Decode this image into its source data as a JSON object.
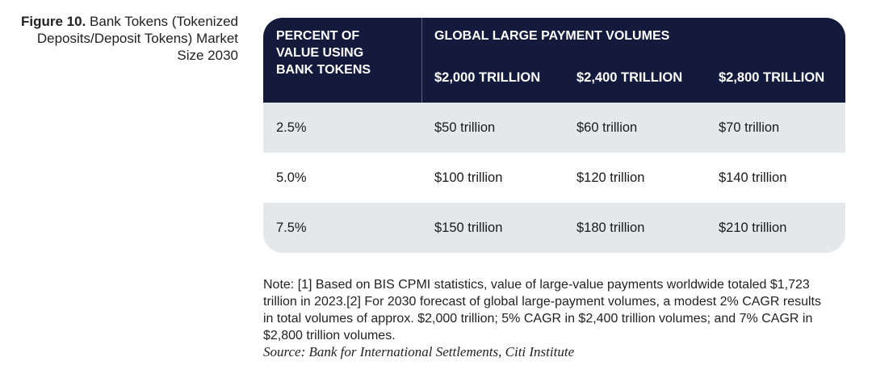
{
  "caption": {
    "label": "Figure 10.",
    "text": "Bank Tokens (Tokenized Deposits/Deposit Tokens) Market Size 2030"
  },
  "table": {
    "row_header": "PERCENT OF VALUE USING BANK TOKENS",
    "group_header": "GLOBAL LARGE PAYMENT VOLUMES",
    "columns": [
      "$2,000 TRILLION",
      "$2,400 TRILLION",
      "$2,800 TRILLION"
    ],
    "rows": [
      [
        "2.5%",
        "$50 trillion",
        "$60 trillion",
        "$70 trillion"
      ],
      [
        "5.0%",
        "$100 trillion",
        "$120 trillion",
        "$140 trillion"
      ],
      [
        "7.5%",
        "$150 trillion",
        "$180 trillion",
        "$210 trillion"
      ]
    ]
  },
  "note": "Note: [1] Based on BIS CPMI statistics, value of large-value payments worldwide totaled $1,723 trillion in 2023.[2] For 2030 forecast of global large-payment volumes, a modest 2% CAGR results in total volumes of approx. $2,000 trillion; 5% CAGR in $2,400 trillion volumes; and 7% CAGR in $2,800 trillion volumes.",
  "source": "Source: Bank for International Settlements, Citi Institute"
}
